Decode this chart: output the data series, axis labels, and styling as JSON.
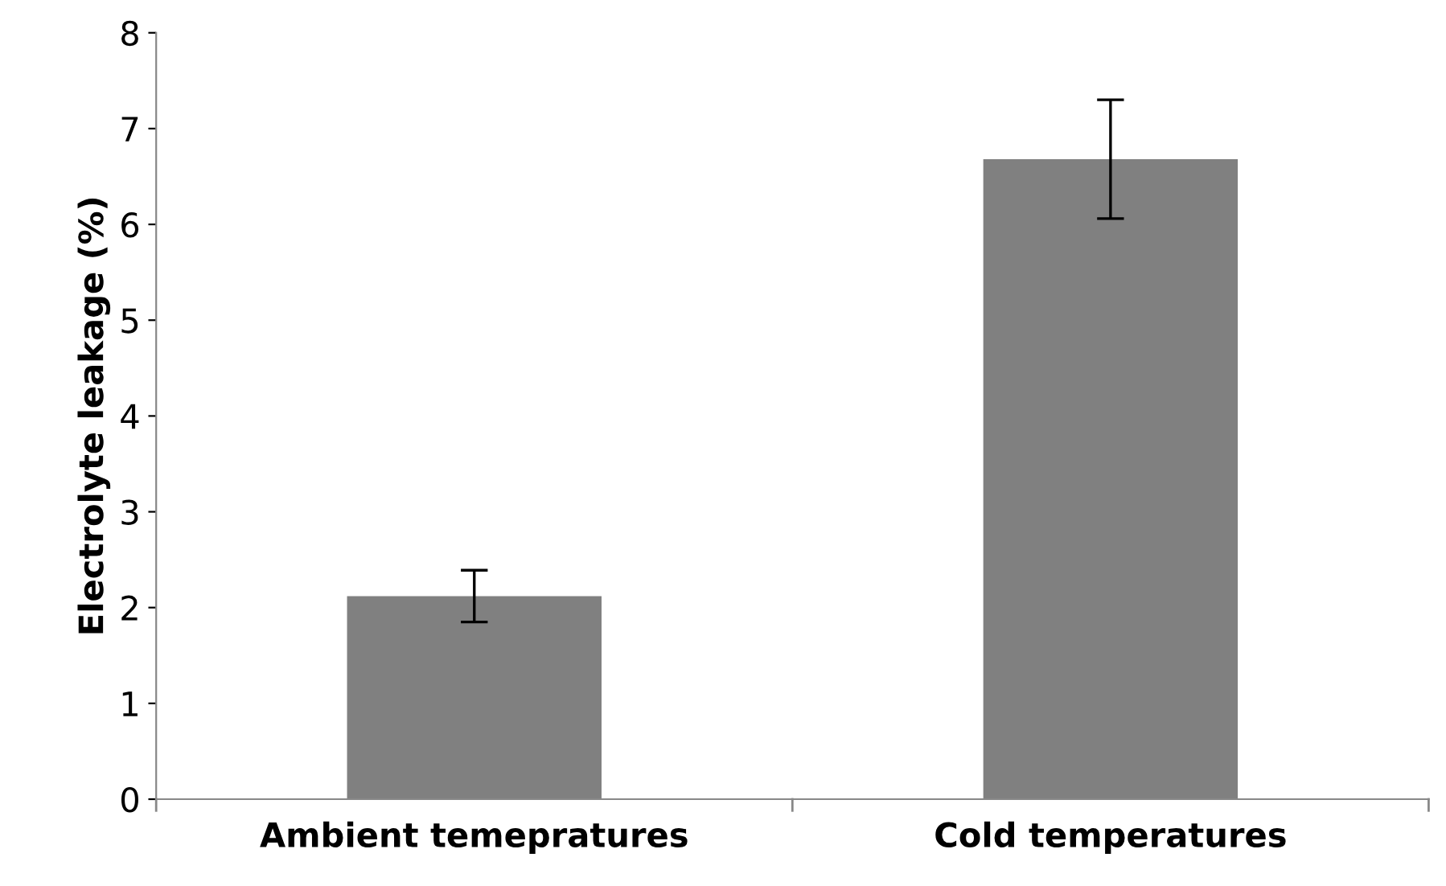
{
  "chart_data": {
    "type": "bar",
    "ylabel": "Electrolyte leakage (%)",
    "categories": [
      "Ambient temepratures",
      "Cold temperatures"
    ],
    "values": [
      2.12,
      6.68
    ],
    "errors": [
      0.27,
      0.62
    ],
    "color": "#808080",
    "ylim": [
      0,
      8
    ],
    "yticks": [
      0,
      1,
      2,
      3,
      4,
      5,
      6,
      7,
      8
    ],
    "grid": false
  }
}
